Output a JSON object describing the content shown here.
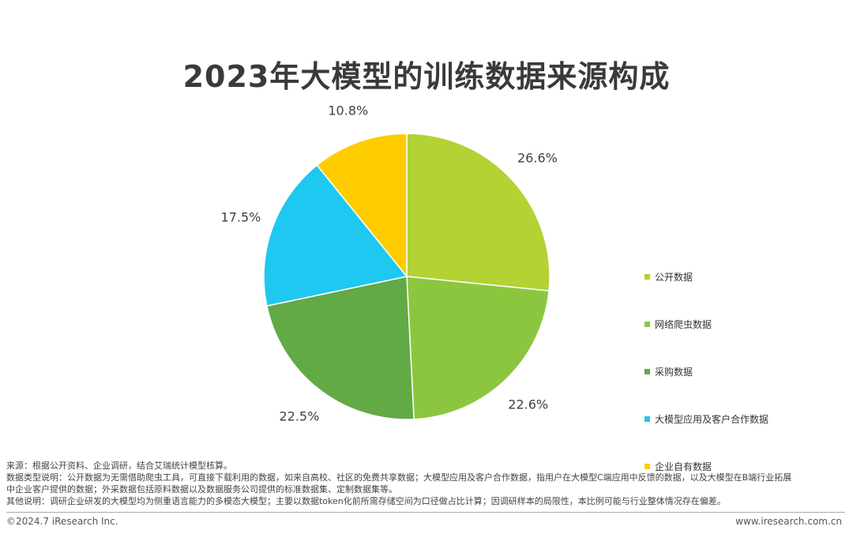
{
  "chart_data": {
    "type": "pie",
    "title": "2023年大模型的训练数据来源构成",
    "unit": "%",
    "slices": [
      {
        "label": "公开数据",
        "value": 26.6,
        "value_label": "26.6%",
        "color": "#b3d234"
      },
      {
        "label": "网络爬虫数据",
        "value": 22.6,
        "value_label": "22.6%",
        "color": "#8cc63f"
      },
      {
        "label": "采购数据",
        "value": 22.5,
        "value_label": "22.5%",
        "color": "#62aa45"
      },
      {
        "label": "大模型应用及客户合作数据",
        "value": 17.5,
        "value_label": "17.5%",
        "color": "#1ec8f0"
      },
      {
        "label": "企业自有数据",
        "value": 10.8,
        "value_label": "10.8%",
        "color": "#ffcc00"
      }
    ],
    "legend_position": "right"
  },
  "notes": {
    "source": "来源：根据公开资料、企业调研，结合艾瑞统计模型核算。",
    "definition_line1": "数据类型说明：公开数据为无需借助爬虫工具，可直接下载利用的数据，如来自高校、社区的免费共享数据；大模型应用及客户合作数据，指用户在大模型C端应用中反馈的数据，以及大模型在B端行业拓展",
    "definition_line2": "中企业客户提供的数据；外采数据包括原料数据以及数据服务公司提供的标准数据集、定制数据集等。",
    "other": "其他说明：调研企业研发的大模型均为侧重语言能力的多模态大模型；主要以数据token化前所需存储空间为口径做占比计算；因调研样本的局限性，本比例可能与行业整体情况存在偏差。"
  },
  "footer": {
    "copyright": "©2024.7 iResearch Inc.",
    "website": "www.iresearch.com.cn"
  }
}
